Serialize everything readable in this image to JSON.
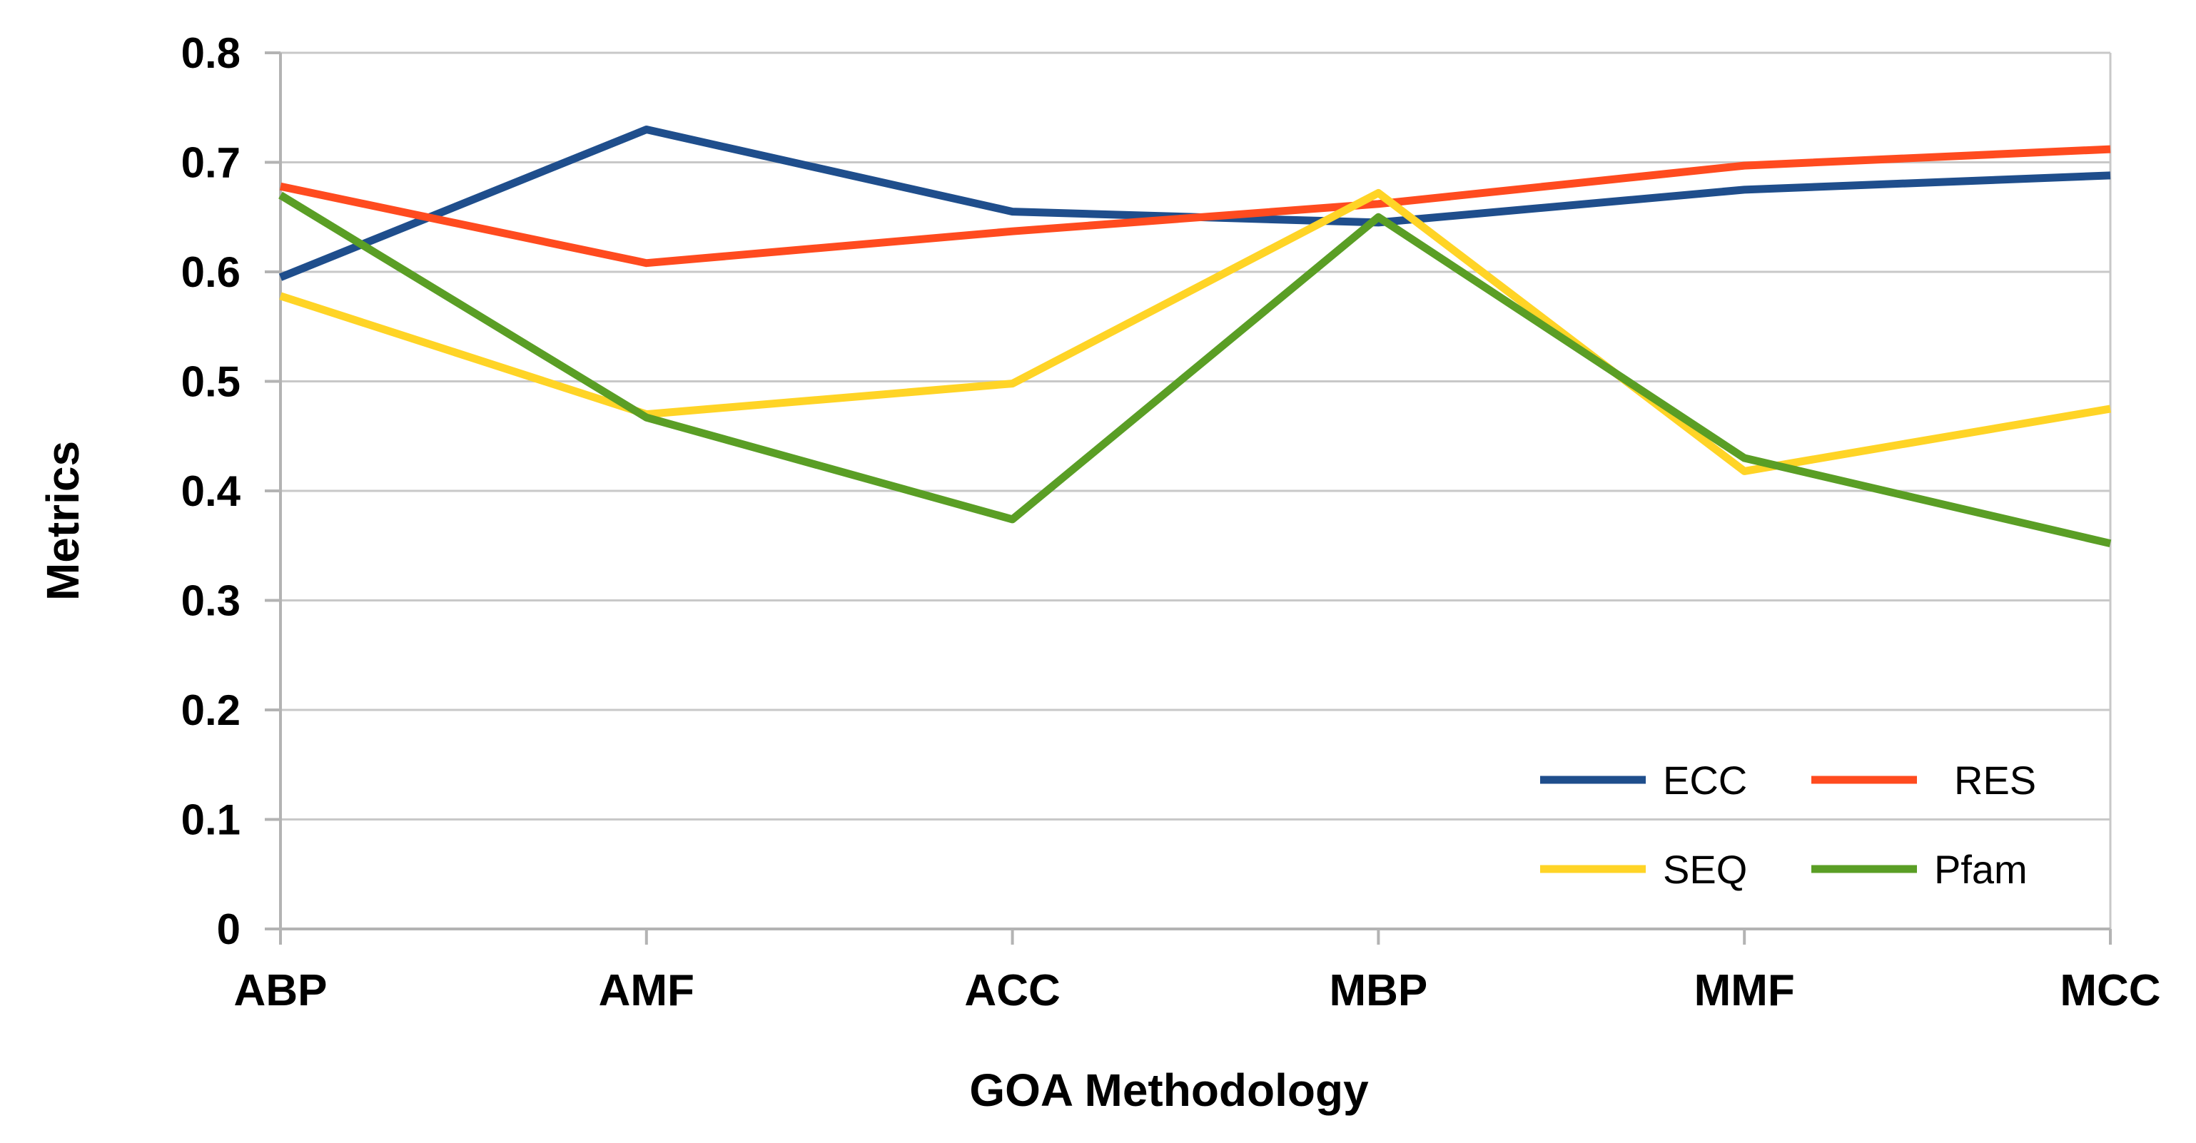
{
  "chart_data": {
    "type": "line",
    "title": "",
    "xlabel": "GOA Methodology",
    "ylabel": "Metrics",
    "categories": [
      "ABP",
      "AMF",
      "ACC",
      "MBP",
      "MMF",
      "MCC"
    ],
    "ylim": [
      0,
      0.8
    ],
    "yticks": [
      0,
      0.1,
      0.2,
      0.3,
      0.4,
      0.5,
      0.6,
      0.7,
      0.8
    ],
    "ytick_labels": [
      "0",
      "0.1",
      "0.2",
      "0.3",
      "0.4",
      "0.5",
      "0.6",
      "0.7",
      "0.8"
    ],
    "grid": true,
    "legend_position": "bottom-right",
    "series": [
      {
        "name": "ECC",
        "color": "#1f4e8c",
        "values": [
          0.595,
          0.73,
          0.655,
          0.645,
          0.675,
          0.688
        ]
      },
      {
        "name": "RES",
        "color": "#ff4b1f",
        "values": [
          0.678,
          0.608,
          0.637,
          0.662,
          0.697,
          0.712
        ]
      },
      {
        "name": "SEQ",
        "color": "#ffd426",
        "values": [
          0.578,
          0.47,
          0.498,
          0.672,
          0.418,
          0.475
        ]
      },
      {
        "name": "Pfam",
        "color": "#5a9e25",
        "values": [
          0.67,
          0.467,
          0.374,
          0.65,
          0.43,
          0.352
        ]
      }
    ]
  }
}
